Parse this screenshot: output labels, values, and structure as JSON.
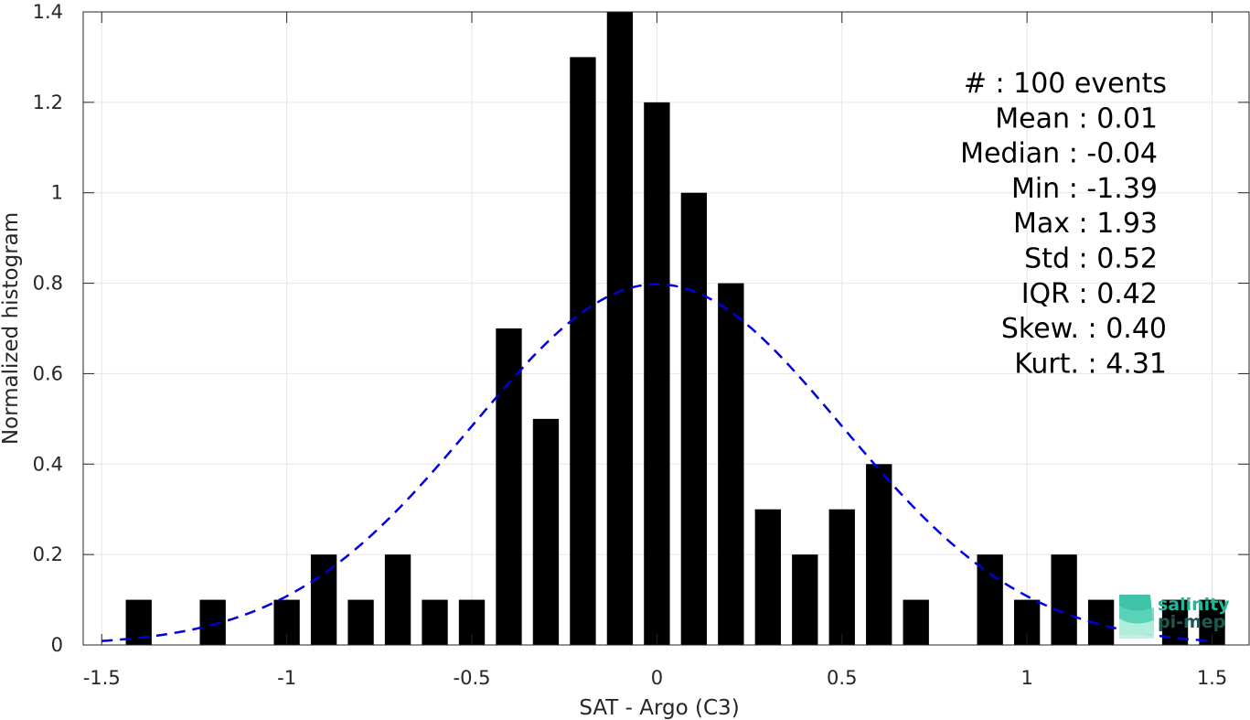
{
  "chart_data": {
    "type": "bar",
    "xlabel": "SAT - Argo (C3)",
    "ylabel": "Normalized histogram",
    "xlim": [
      -1.55,
      1.6
    ],
    "ylim": [
      0,
      1.4
    ],
    "grid": true,
    "x_ticks": [
      "-1.5",
      "-1",
      "-0.5",
      "0",
      "0.5",
      "1",
      "1.5"
    ],
    "y_ticks": [
      "0",
      "0.2",
      "0.4",
      "0.6",
      "0.8",
      "1",
      "1.2",
      "1.4"
    ],
    "bar_width": 0.07,
    "bars": [
      {
        "x": -1.4,
        "value": 0.1
      },
      {
        "x": -1.2,
        "value": 0.1
      },
      {
        "x": -1.0,
        "value": 0.1
      },
      {
        "x": -0.9,
        "value": 0.2
      },
      {
        "x": -0.8,
        "value": 0.1
      },
      {
        "x": -0.7,
        "value": 0.2
      },
      {
        "x": -0.6,
        "value": 0.1
      },
      {
        "x": -0.5,
        "value": 0.1
      },
      {
        "x": -0.4,
        "value": 0.7
      },
      {
        "x": -0.3,
        "value": 0.5
      },
      {
        "x": -0.2,
        "value": 1.3
      },
      {
        "x": -0.1,
        "value": 1.4
      },
      {
        "x": 0.0,
        "value": 1.2
      },
      {
        "x": 0.1,
        "value": 1.0
      },
      {
        "x": 0.2,
        "value": 0.8
      },
      {
        "x": 0.3,
        "value": 0.3
      },
      {
        "x": 0.4,
        "value": 0.2
      },
      {
        "x": 0.5,
        "value": 0.3
      },
      {
        "x": 0.6,
        "value": 0.4
      },
      {
        "x": 0.7,
        "value": 0.1
      },
      {
        "x": 0.9,
        "value": 0.2
      },
      {
        "x": 1.0,
        "value": 0.1
      },
      {
        "x": 1.1,
        "value": 0.2
      },
      {
        "x": 1.2,
        "value": 0.1
      },
      {
        "x": 1.4,
        "value": 0.1
      },
      {
        "x": 1.5,
        "value": 0.1
      }
    ],
    "fit_curve": {
      "style": "dashed",
      "color": "#0000dd",
      "mean": 0.0,
      "std": 0.5,
      "x_range": [
        -1.5,
        1.5
      ]
    },
    "bar_color": "#000000",
    "stats": [
      {
        "label": "#  : 100 events"
      },
      {
        "label": "Mean : 0.01"
      },
      {
        "label": "Median : -0.04"
      },
      {
        "label": "Min : -1.39"
      },
      {
        "label": "Max : 1.93"
      },
      {
        "label": "Std : 0.52"
      },
      {
        "label": "IQR : 0.42"
      },
      {
        "label": "Skew. : 0.40"
      },
      {
        "label": "Kurt. : 4.31"
      }
    ]
  },
  "logo": {
    "line1": "salinity",
    "line2": "pi-mep",
    "color_line1": "#1fb89a",
    "color_line2": "#1a5a52"
  }
}
